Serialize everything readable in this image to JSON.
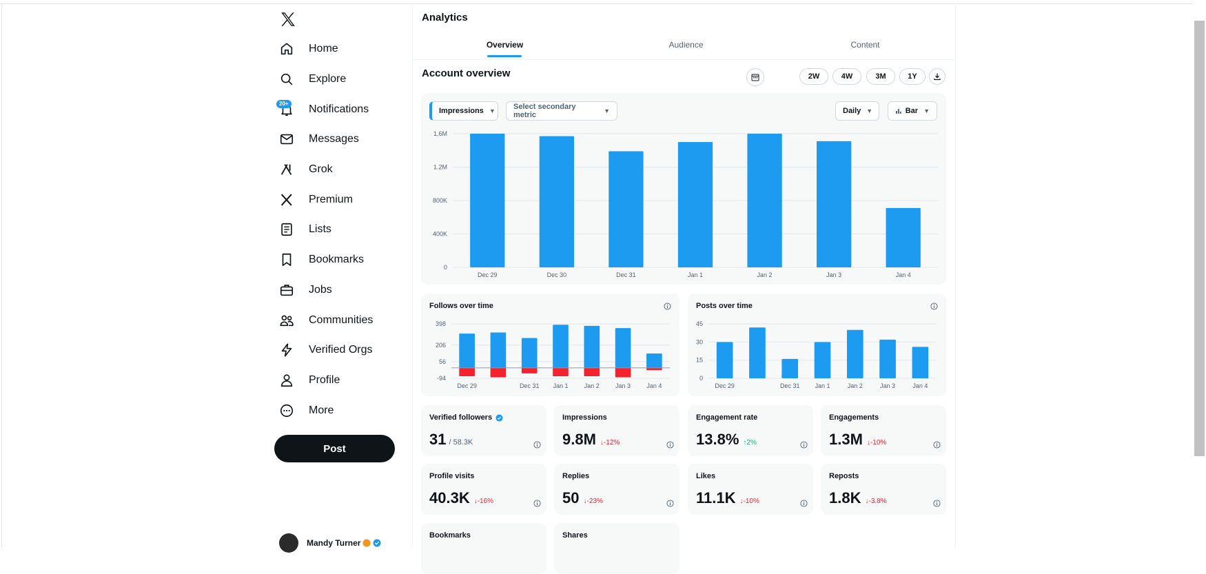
{
  "sidebar": {
    "items": [
      {
        "label": "Home",
        "icon": "home-icon"
      },
      {
        "label": "Explore",
        "icon": "search-icon"
      },
      {
        "label": "Notifications",
        "icon": "bell-icon",
        "badge": "20+"
      },
      {
        "label": "Messages",
        "icon": "mail-icon"
      },
      {
        "label": "Grok",
        "icon": "grok-icon"
      },
      {
        "label": "Premium",
        "icon": "x-logo-icon"
      },
      {
        "label": "Lists",
        "icon": "list-icon"
      },
      {
        "label": "Bookmarks",
        "icon": "bookmark-icon"
      },
      {
        "label": "Jobs",
        "icon": "briefcase-icon"
      },
      {
        "label": "Communities",
        "icon": "people-icon"
      },
      {
        "label": "Verified Orgs",
        "icon": "lightning-icon"
      },
      {
        "label": "Profile",
        "icon": "person-icon"
      },
      {
        "label": "More",
        "icon": "more-circle-icon"
      }
    ],
    "post_label": "Post",
    "user_name": "Mandy Turner"
  },
  "header": {
    "title": "Analytics",
    "tabs": [
      {
        "label": "Overview",
        "active": true
      },
      {
        "label": "Audience",
        "active": false
      },
      {
        "label": "Content",
        "active": false
      }
    ]
  },
  "overview": {
    "title": "Account overview",
    "ranges": [
      "2W",
      "4W",
      "3M",
      "1Y"
    ],
    "primary_metric": "Impressions",
    "secondary_metric": "Select secondary metric",
    "interval": "Daily",
    "chart_kind": "Bar"
  },
  "chart_data": [
    {
      "type": "bar",
      "categories": [
        "Dec 29",
        "Dec 30",
        "Dec 31",
        "Jan 1",
        "Jan 2",
        "Jan 3",
        "Jan 4"
      ],
      "values": [
        1600000,
        1570000,
        1390000,
        1500000,
        1600000,
        1510000,
        710000
      ],
      "ylim": [
        0,
        1600000
      ],
      "yticks": [
        "0",
        "400K",
        "800K",
        "1.2M",
        "1.6M"
      ],
      "color": "#1d9bf0",
      "grid": true
    },
    {
      "type": "bar",
      "title": "Follows over time",
      "categories": [
        "Dec 29",
        "Dec 30",
        "Dec 31",
        "Jan 1",
        "Jan 2",
        "Jan 3",
        "Jan 4"
      ],
      "xticks": [
        "Dec 29",
        "",
        "Dec 31",
        "Jan 1",
        "Jan 2",
        "Jan 3",
        "Jan 4"
      ],
      "series": [
        {
          "values": [
            310,
            320,
            270,
            390,
            380,
            360,
            130
          ],
          "color": "#1d9bf0"
        },
        {
          "values": [
            -75,
            -85,
            -50,
            -75,
            -75,
            -85,
            -20
          ],
          "color": "#f4212e"
        }
      ],
      "ylim": [
        -94,
        398
      ],
      "yticks": [
        "-94",
        "56",
        "206",
        "398"
      ]
    },
    {
      "type": "bar",
      "title": "Posts over time",
      "categories": [
        "Dec 29",
        "Dec 30",
        "Dec 31",
        "Jan 1",
        "Jan 2",
        "Jan 3",
        "Jan 4"
      ],
      "xticks": [
        "Dec 29",
        "",
        "Dec 31",
        "Jan 1",
        "Jan 2",
        "Jan 3",
        "Jan 4"
      ],
      "values": [
        30,
        42,
        16,
        30,
        40,
        32,
        26
      ],
      "ylim": [
        0,
        45
      ],
      "yticks": [
        "0",
        "15",
        "30",
        "45"
      ],
      "color": "#1d9bf0"
    }
  ],
  "metrics": [
    {
      "label": "Verified followers",
      "value": "31",
      "sub": "/ 58.3K",
      "verified": true
    },
    {
      "label": "Impressions",
      "value": "9.8M",
      "delta": "↓-12%",
      "dir": "down"
    },
    {
      "label": "Engagement rate",
      "value": "13.8%",
      "delta": "↑2%",
      "dir": "up"
    },
    {
      "label": "Engagements",
      "value": "1.3M",
      "delta": "↓-10%",
      "dir": "down"
    },
    {
      "label": "Profile visits",
      "value": "40.3K",
      "delta": "↓-16%",
      "dir": "down"
    },
    {
      "label": "Replies",
      "value": "50",
      "delta": "↓-23%",
      "dir": "down"
    },
    {
      "label": "Likes",
      "value": "11.1K",
      "delta": "↓-10%",
      "dir": "down"
    },
    {
      "label": "Reposts",
      "value": "1.8K",
      "delta": "↓-3.8%",
      "dir": "down"
    },
    {
      "label": "Bookmarks"
    },
    {
      "label": "Shares"
    }
  ],
  "colors": {
    "accent": "#1d9bf0",
    "negative": "#f4212e",
    "positive": "#00ba7c"
  }
}
